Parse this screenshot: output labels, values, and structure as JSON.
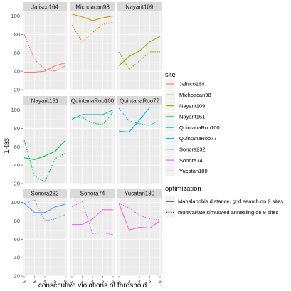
{
  "chart_data": {
    "type": "line",
    "facet_by": "site",
    "xlabel": "consecutive violations of threshold",
    "ylabel": "1-tss",
    "x": [
      2,
      3,
      4,
      5,
      6
    ],
    "xlim": [
      2,
      6
    ],
    "ylim": [
      20,
      105
    ],
    "y_ticks": [
      20,
      40,
      60,
      80,
      100
    ],
    "x_ticks": [
      2,
      3,
      4,
      5,
      6
    ],
    "grid": true,
    "legend_placement": "right",
    "legends": [
      {
        "title": "site",
        "entries": [
          {
            "label": "Jalisco164",
            "color": "#F8766D"
          },
          {
            "label": "Michoacan98",
            "color": "#D39200"
          },
          {
            "label": "Nayarit109",
            "color": "#93AA00"
          },
          {
            "label": "Nayarit151",
            "color": "#00BA38"
          },
          {
            "label": "QuintanaRoo100",
            "color": "#00C19F"
          },
          {
            "label": "QuintanaRoo77",
            "color": "#00B9E3"
          },
          {
            "label": "Sonora232",
            "color": "#619CFF"
          },
          {
            "label": "Sonora74",
            "color": "#DB72FB"
          },
          {
            "label": "Yucatan180",
            "color": "#FF61C3"
          }
        ]
      },
      {
        "title": "optimization",
        "entries": [
          {
            "label": "Mahalanobis distance, grid search on 9 sites",
            "linetype": "solid"
          },
          {
            "label": "multivariate simulated annealing on 9 sites",
            "linetype": "dotted"
          }
        ]
      }
    ],
    "panels": [
      {
        "site": "Jalisco164",
        "color": "#F8766D",
        "series": [
          {
            "name": "Mahalanobis distance, grid search on 9 sites",
            "linetype": "solid",
            "values": [
              39,
              39,
              40,
              46,
              49
            ]
          },
          {
            "name": "multivariate simulated annealing on 9 sites",
            "linetype": "dotted",
            "values": [
              80,
              53,
              42,
              40,
              46
            ]
          }
        ]
      },
      {
        "site": "Michoacan98",
        "color": "#D39200",
        "series": [
          {
            "name": "Mahalanobis distance, grid search on 9 sites",
            "linetype": "solid",
            "values": [
              102,
              99,
              95,
              98,
              100
            ]
          },
          {
            "name": "multivariate simulated annealing on 9 sites",
            "linetype": "dotted",
            "values": [
              90,
              72,
              82,
              91,
              93
            ]
          }
        ]
      },
      {
        "site": "Nayarit109",
        "color": "#93AA00",
        "series": [
          {
            "name": "Mahalanobis distance, grid search on 9 sites",
            "linetype": "solid",
            "values": [
              46,
              56,
              62,
              72,
              78
            ]
          },
          {
            "name": "multivariate simulated annealing on 9 sites",
            "linetype": "dotted",
            "values": [
              61,
              42,
              51,
              61,
              61
            ]
          }
        ]
      },
      {
        "site": "Nayarit151",
        "color": "#00BA38",
        "series": [
          {
            "name": "Mahalanobis distance, grid search on 9 sites",
            "linetype": "solid",
            "values": [
              48,
              46,
              50,
              55,
              67
            ]
          },
          {
            "name": "multivariate simulated annealing on 9 sites",
            "linetype": "dotted",
            "values": [
              67,
              28,
              22,
              47,
              53
            ]
          }
        ]
      },
      {
        "site": "QuintanaRoo100",
        "color": "#00C19F",
        "series": [
          {
            "name": "Mahalanobis distance, grid search on 9 sites",
            "linetype": "solid",
            "values": [
              90,
              95,
              95,
              95,
              100
            ]
          },
          {
            "name": "multivariate simulated annealing on 9 sites",
            "linetype": "dotted",
            "values": [
              92,
              92,
              86,
              84,
              98
            ]
          }
        ]
      },
      {
        "site": "QuintanaRoo77",
        "color": "#00B9E3",
        "series": [
          {
            "name": "Mahalanobis distance, grid search on 9 sites",
            "linetype": "solid",
            "values": [
              77,
              76,
              89,
              103,
              103
            ]
          },
          {
            "name": "multivariate simulated annealing on 9 sites",
            "linetype": "dotted",
            "values": [
              102,
              88,
              85,
              83,
              90
            ]
          }
        ]
      },
      {
        "site": "Sonora232",
        "color": "#619CFF",
        "series": [
          {
            "name": "Mahalanobis distance, grid search on 9 sites",
            "linetype": "solid",
            "values": [
              99,
              89,
              89,
              95,
              98
            ]
          },
          {
            "name": "multivariate simulated annealing on 9 sites",
            "linetype": "dotted",
            "values": [
              98,
              103,
              80,
              82,
              87
            ]
          }
        ]
      },
      {
        "site": "Sonora74",
        "color": "#DB72FB",
        "series": [
          {
            "name": "Mahalanobis distance, grid search on 9 sites",
            "linetype": "solid",
            "values": [
              76,
              76,
              82,
              92,
              92
            ]
          },
          {
            "name": "multivariate simulated annealing on 9 sites",
            "linetype": "dotted",
            "values": [
              95,
              101,
              66,
              67,
              65
            ]
          }
        ]
      },
      {
        "site": "Yucatan180",
        "color": "#FF61C3",
        "series": [
          {
            "name": "Mahalanobis distance, grid search on 9 sites",
            "linetype": "solid",
            "values": [
              99,
              70,
              73,
              72,
              80
            ]
          },
          {
            "name": "multivariate simulated annealing on 9 sites",
            "linetype": "dotted",
            "values": [
              99,
              94,
              86,
              82,
              81
            ]
          }
        ]
      }
    ]
  }
}
